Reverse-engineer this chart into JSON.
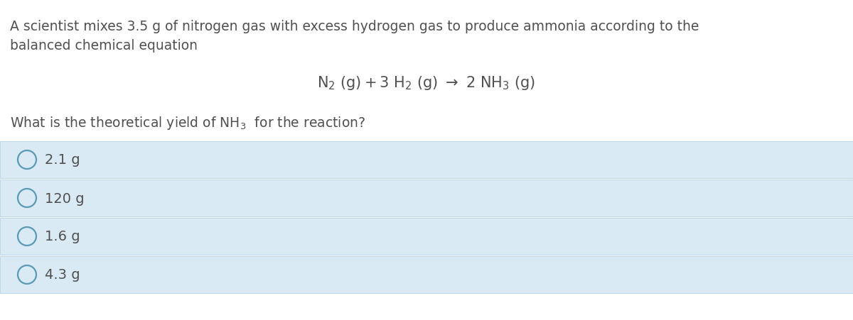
{
  "background_color": "#ffffff",
  "question_text_line1": "A scientist mixes 3.5 g of nitrogen gas with excess hydrogen gas to produce ammonia according to the",
  "question_text_line2": "balanced chemical equation",
  "sub_question_pre": "What is the theoretical yield of NH",
  "sub_question_post": "  for the reaction?",
  "options": [
    "2.1 g",
    "120 g",
    "1.6 g",
    "4.3 g"
  ],
  "option_bg_color": "#daeaf5",
  "option_border_color": "#c0d8ea",
  "text_color": "#505050",
  "circle_edge_color": "#5a9ab5",
  "font_size_main": 13.5,
  "font_size_eq": 15,
  "font_size_option": 14,
  "fig_width": 12.0,
  "fig_height": 4.52,
  "dpi": 100
}
